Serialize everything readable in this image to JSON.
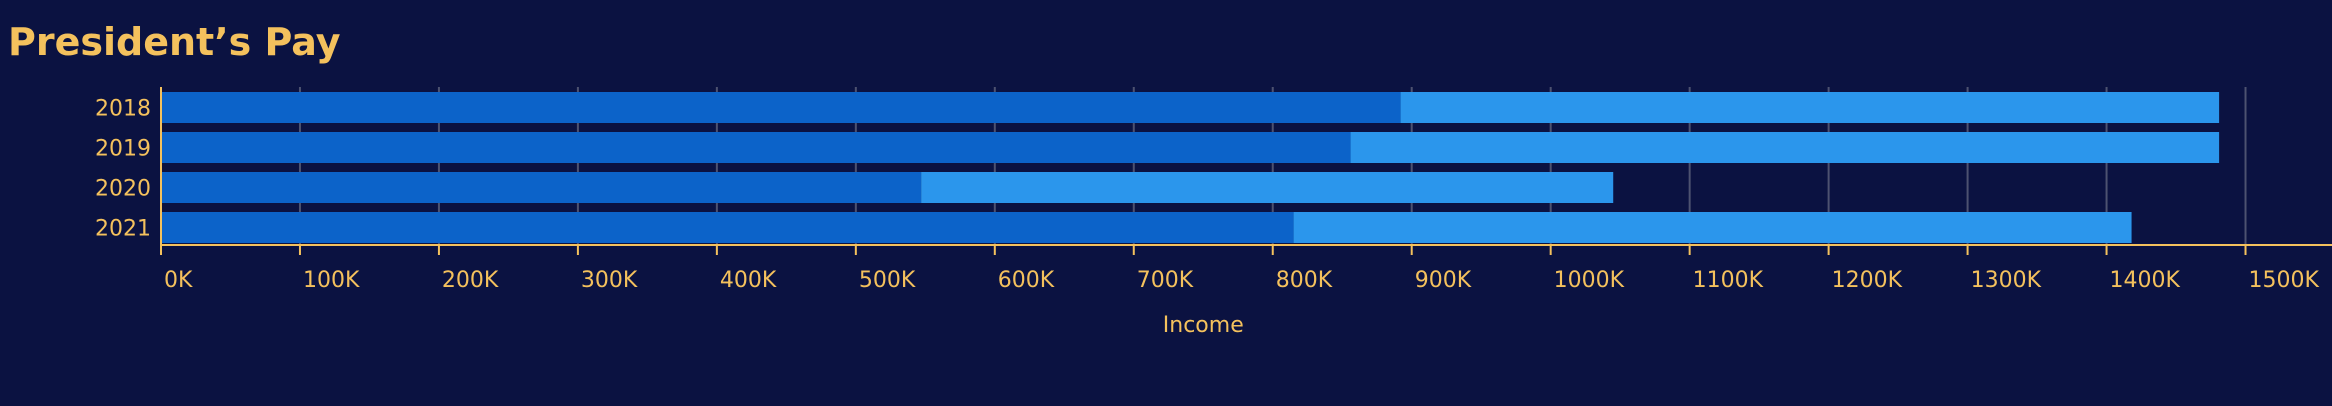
{
  "chart_data": {
    "type": "bar",
    "orientation": "horizontal",
    "stacked": true,
    "title": "President’s Pay",
    "xlabel": "Income",
    "ylabel": "",
    "xlim": [
      0,
      1550000
    ],
    "x_ticks": [
      0,
      100000,
      200000,
      300000,
      400000,
      500000,
      600000,
      700000,
      800000,
      900000,
      1000000,
      1100000,
      1200000,
      1300000,
      1400000,
      1500000
    ],
    "x_tick_labels": [
      "0K",
      "100K",
      "200K",
      "300K",
      "400K",
      "500K",
      "600K",
      "700K",
      "800K",
      "900K",
      "1000K",
      "1100K",
      "1200K",
      "1300K",
      "1400K",
      "1500K"
    ],
    "categories": [
      "2018",
      "2019",
      "2020",
      "2021"
    ],
    "series": [
      {
        "color": "#0c63c9",
        "values": [
          892000,
          856000,
          547000,
          815000
        ]
      },
      {
        "color": "#2b96ec",
        "values": [
          589000,
          625000,
          498000,
          603000
        ]
      }
    ],
    "grid": true,
    "grid_color": "#4d5270",
    "axis_color": "#f4c15d",
    "text_color": "#f4c15d",
    "background": "#0b1241",
    "legend": "none"
  }
}
